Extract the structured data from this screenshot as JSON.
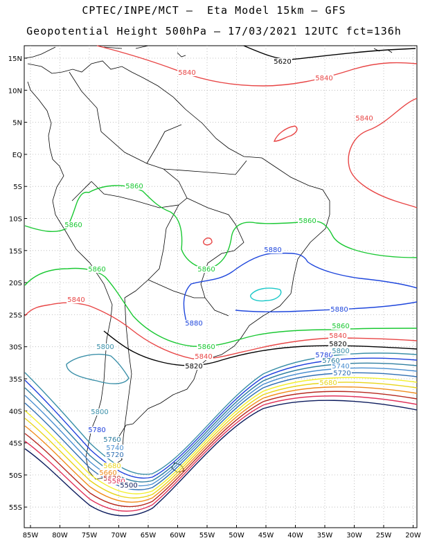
{
  "title": {
    "line1": "CPTEC/INPE/MCT –  Eta Model 15km – GFS",
    "line2": "Geopotential Height 500hPa – 17/03/2021 12UTC fct=136h"
  },
  "axes": {
    "lat_labels": [
      "15N",
      "10N",
      "5N",
      "EQ",
      "5S",
      "10S",
      "15S",
      "20S",
      "25S",
      "30S",
      "35S",
      "40S",
      "45S",
      "50S",
      "55S"
    ],
    "lon_labels": [
      "85W",
      "80W",
      "75W",
      "70W",
      "65W",
      "60W",
      "55W",
      "50W",
      "45W",
      "40W",
      "35W",
      "30W",
      "25W",
      "20W"
    ]
  },
  "colors": {
    "c5500": "#0b1a5c",
    "c5540": "#e0325a",
    "c5580": "#b7281e",
    "c5620": "#f08c1c",
    "c5660": "#e8d51a",
    "c5700": "#f2ef2a",
    "c5720": "#2f6fb3",
    "c5740": "#4a8fd0",
    "c5760": "#2e7ea0",
    "c5780": "#1e3fdc",
    "c5800": "#3a8fa8",
    "c5820": "#000000",
    "c5840": "#e84545",
    "c5860": "#19c832",
    "c5880": "#1e46dc",
    "c5900": "#19c8c8",
    "coast": "#000000"
  },
  "contour_labels": [
    {
      "id": "l5620n",
      "text": "5620",
      "color": "#000000"
    },
    {
      "id": "l5840a",
      "text": "5840",
      "color": "#e84545"
    },
    {
      "id": "l5840b",
      "text": "5840",
      "color": "#e84545"
    },
    {
      "id": "l5840c",
      "text": "5840",
      "color": "#e84545"
    },
    {
      "id": "l5860a",
      "text": "5860",
      "color": "#19c832"
    },
    {
      "id": "l5860b",
      "text": "5860",
      "color": "#19c832"
    },
    {
      "id": "l5860c",
      "text": "5860",
      "color": "#19c832"
    },
    {
      "id": "l5860d",
      "text": "5860",
      "color": "#19c832"
    },
    {
      "id": "l5860e",
      "text": "5860",
      "color": "#19c832"
    },
    {
      "id": "l5880a",
      "text": "5880",
      "color": "#1e46dc"
    },
    {
      "id": "l5880b",
      "text": "5880",
      "color": "#1e46dc"
    },
    {
      "id": "l5880c",
      "text": "5880",
      "color": "#1e46dc"
    },
    {
      "id": "l5840d",
      "text": "5840",
      "color": "#e84545"
    },
    {
      "id": "l5860f",
      "text": "5860",
      "color": "#19c832"
    },
    {
      "id": "l5860g",
      "text": "5860",
      "color": "#19c832"
    },
    {
      "id": "l5840e",
      "text": "5840",
      "color": "#e84545"
    },
    {
      "id": "l5620s",
      "text": "5820",
      "color": "#000000"
    },
    {
      "id": "l5800a",
      "text": "5800",
      "color": "#3a8fa8"
    },
    {
      "id": "l5620w",
      "text": "5820",
      "color": "#000000"
    },
    {
      "id": "l5840w",
      "text": "5840",
      "color": "#e84545"
    },
    {
      "id": "l5780a",
      "text": "5780",
      "color": "#1e3fdc"
    },
    {
      "id": "l5800b",
      "text": "5800",
      "color": "#3a8fa8"
    },
    {
      "id": "l5760a",
      "text": "5760",
      "color": "#2e7ea0"
    },
    {
      "id": "l5740a",
      "text": "5740",
      "color": "#4a8fd0"
    },
    {
      "id": "l5720a",
      "text": "5720",
      "color": "#2f6fb3"
    },
    {
      "id": "l5680a",
      "text": "5680",
      "color": "#e8d51a"
    },
    {
      "id": "l5800c",
      "text": "5800",
      "color": "#3a8fa8"
    },
    {
      "id": "l5780b",
      "text": "5780",
      "color": "#1e3fdc"
    },
    {
      "id": "l5760b",
      "text": "5760",
      "color": "#2e7ea0"
    },
    {
      "id": "l5740b",
      "text": "5740",
      "color": "#4a8fd0"
    },
    {
      "id": "l5720b",
      "text": "5720",
      "color": "#2f6fb3"
    },
    {
      "id": "l5680b",
      "text": "5680",
      "color": "#e8d51a"
    },
    {
      "id": "l5660b",
      "text": "5660",
      "color": "#f08c1c"
    },
    {
      "id": "l5620b",
      "text": "5620",
      "color": "#b7281e"
    },
    {
      "id": "l5580b",
      "text": "5580",
      "color": "#e0325a"
    },
    {
      "id": "l5500b",
      "text": "5500",
      "color": "#0b1a5c"
    }
  ]
}
